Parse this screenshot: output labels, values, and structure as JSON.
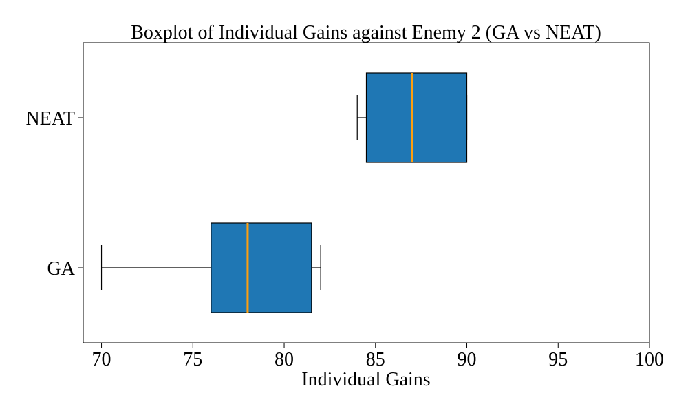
{
  "chart_data": {
    "type": "boxplot",
    "orientation": "horizontal",
    "title": "Boxplot of Individual Gains against Enemy 2 (GA vs NEAT)",
    "xlabel": "Individual Gains",
    "ylabel": "",
    "xlim": [
      69.0,
      100
    ],
    "xticks": [
      70,
      75,
      80,
      85,
      90,
      95,
      100
    ],
    "categories": [
      "GA",
      "NEAT"
    ],
    "boxes": [
      {
        "label": "GA",
        "whisker_low": 70,
        "q1": 76,
        "median": 78,
        "q3": 81.5,
        "whisker_high": 82
      },
      {
        "label": "NEAT",
        "whisker_low": 84,
        "q1": 84.5,
        "median": 87,
        "q3": 90,
        "whisker_high": 90
      }
    ],
    "colors": {
      "box_fill": "#1f77b4",
      "median": "#ff9f0e",
      "edge": "#000000"
    },
    "grid": false,
    "legend": "none"
  }
}
